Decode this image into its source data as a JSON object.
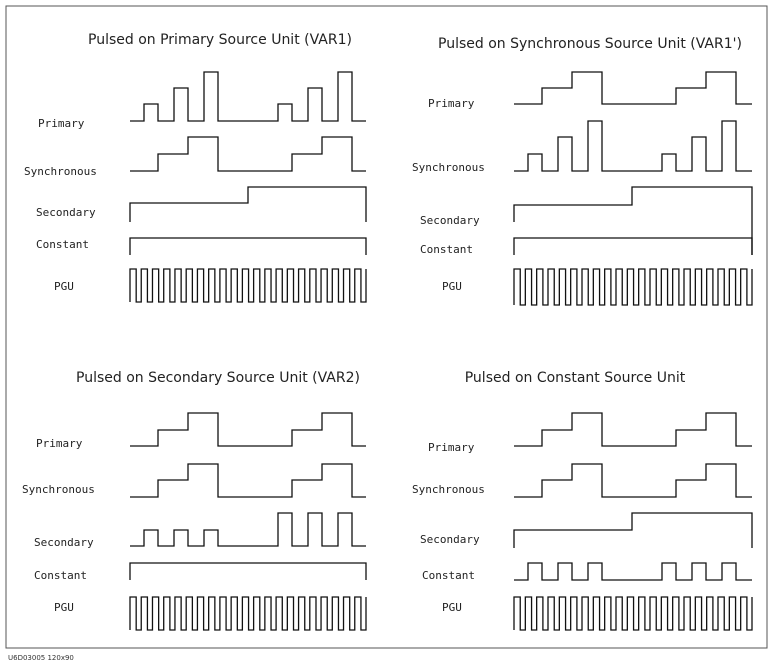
{
  "caption": "U6D03005 120x90",
  "signal_labels": {
    "primary": "Primary",
    "synchronous": "Synchronous",
    "secondary": "Secondary",
    "constant": "Constant",
    "pgu": "PGU"
  },
  "panels": [
    {
      "title": "Pulsed on Primary Source Unit (VAR1)",
      "primary_mode": "pulsed",
      "synchronous_mode": "staircase",
      "secondary_mode": "step",
      "constant_mode": "dc",
      "pgu_mode": "clock"
    },
    {
      "title": "Pulsed on Synchronous Source Unit (VAR1')",
      "primary_mode": "staircase",
      "synchronous_mode": "pulsed",
      "secondary_mode": "step",
      "constant_mode": "dc",
      "pgu_mode": "clock"
    },
    {
      "title": "Pulsed on Secondary Source Unit (VAR2)",
      "primary_mode": "staircase",
      "synchronous_mode": "staircase",
      "secondary_mode": "pulsed-step",
      "constant_mode": "dc",
      "pgu_mode": "clock"
    },
    {
      "title": "Pulsed on Constant Source Unit",
      "primary_mode": "staircase",
      "synchronous_mode": "staircase",
      "secondary_mode": "step",
      "constant_mode": "pulsed",
      "pgu_mode": "clock"
    }
  ]
}
